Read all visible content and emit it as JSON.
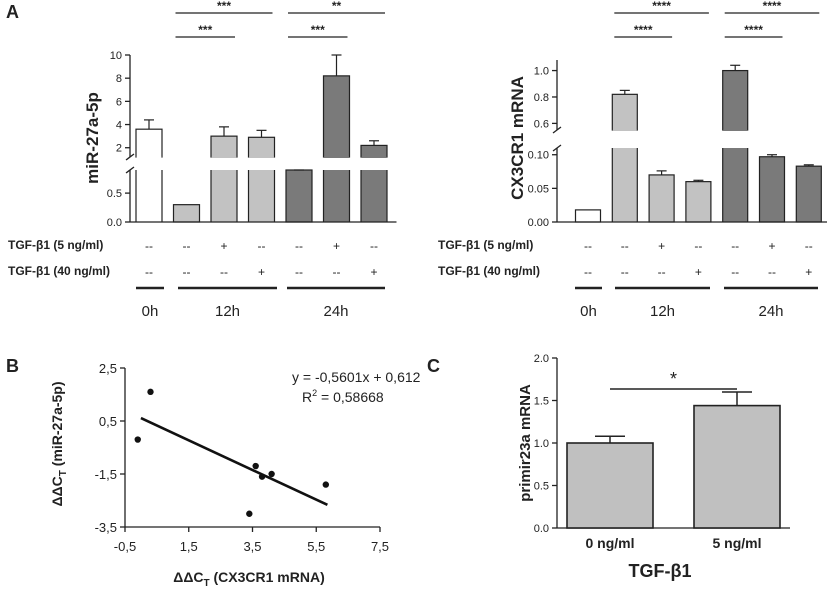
{
  "colors": {
    "white_bar": "#ffffff",
    "light_bar": "#c2c2c2",
    "dark_bar": "#7a7a7a",
    "stroke": "#222222",
    "c_bar": "#c0c0c0"
  },
  "panel_labels": {
    "a": "A",
    "b": "B",
    "c": "C"
  },
  "treatment_table": {
    "row1_label": "TGF-β1  (5 ng/ml)",
    "row2_label": "TGF-β1 (40 ng/ml)",
    "row1": [
      "--",
      "--",
      "+",
      "--",
      "--",
      "+",
      "--"
    ],
    "row2": [
      "--",
      "--",
      "--",
      "+",
      "--",
      "--",
      "+"
    ],
    "time_labels": [
      "0h",
      "12h",
      "24h"
    ]
  },
  "chart_data": [
    {
      "id": "A-left",
      "type": "bar",
      "ylabel": "miR-27a-5p",
      "categories": [
        "0h",
        "12h ctrl",
        "12h TGF-β1 5",
        "12h TGF-β1 40",
        "24h ctrl",
        "24h TGF-β1 5",
        "24h TGF-β1 40"
      ],
      "values": [
        3.6,
        0.3,
        3.0,
        2.9,
        0.9,
        8.2,
        2.2
      ],
      "errors": [
        0.8,
        0.0,
        0.8,
        0.6,
        0.2,
        1.8,
        0.4
      ],
      "bar_colors": [
        "white",
        "light",
        "light",
        "light",
        "dark",
        "dark",
        "dark"
      ],
      "y_broken_axis": true,
      "lower_ticks": [
        "0.0",
        "0.5"
      ],
      "upper_ticks": [
        "2",
        "4",
        "6",
        "8",
        "10"
      ],
      "significance": [
        {
          "from": 1,
          "to": 3,
          "label": "***"
        },
        {
          "from": 1,
          "to": 2,
          "label": "***"
        },
        {
          "from": 4,
          "to": 6,
          "label": "**"
        },
        {
          "from": 4,
          "to": 5,
          "label": "***"
        }
      ]
    },
    {
      "id": "A-right",
      "type": "bar",
      "ylabel": "CX3CR1 mRNA",
      "categories": [
        "0h",
        "12h ctrl",
        "12h TGF-β1 5",
        "12h TGF-β1 40",
        "24h ctrl",
        "24h TGF-β1 5",
        "24h TGF-β1 40"
      ],
      "values": [
        0.018,
        0.82,
        0.07,
        0.06,
        1.0,
        0.097,
        0.083
      ],
      "errors": [
        0.0,
        0.03,
        0.006,
        0.002,
        0.04,
        0.003,
        0.002
      ],
      "bar_colors": [
        "white",
        "light",
        "light",
        "light",
        "dark",
        "dark",
        "dark"
      ],
      "y_broken_axis": true,
      "lower_ticks": [
        "0.00",
        "0.05",
        "0.10"
      ],
      "upper_ticks": [
        "0.6",
        "0.8",
        "1.0"
      ],
      "significance": [
        {
          "from": 1,
          "to": 3,
          "label": "****"
        },
        {
          "from": 1,
          "to": 2,
          "label": "****"
        },
        {
          "from": 4,
          "to": 6,
          "label": "****"
        },
        {
          "from": 4,
          "to": 5,
          "label": "****"
        }
      ]
    },
    {
      "id": "B",
      "type": "scatter",
      "xlabel": "ΔΔC",
      "xlabel_sub": "T",
      "xlabel_rest": " (CX3CR1 mRNA)",
      "ylabel": "ΔΔC",
      "ylabel_sub": "T",
      "ylabel_rest": " (miR-27a-5p)",
      "xlim": [
        -0.5,
        7.5
      ],
      "ylim": [
        -3.5,
        2.5
      ],
      "x_ticks": [
        "-0,5",
        "1,5",
        "3,5",
        "5,5",
        "7,5"
      ],
      "y_ticks": [
        "2,5",
        "0,5",
        "-1,5",
        "-3,5"
      ],
      "points": [
        {
          "x": -0.1,
          "y": -0.2
        },
        {
          "x": 0.3,
          "y": 1.6
        },
        {
          "x": 3.4,
          "y": -3.0
        },
        {
          "x": 3.6,
          "y": -1.2
        },
        {
          "x": 3.8,
          "y": -1.6
        },
        {
          "x": 4.1,
          "y": -1.5
        },
        {
          "x": 5.8,
          "y": -1.9
        }
      ],
      "fit": {
        "slope": -0.5601,
        "intercept": 0.612,
        "x_from": 0.0,
        "x_to": 5.85
      },
      "equation": "y = -0,5601x + 0,612",
      "r2_label": "R",
      "r2_sup": "2",
      "r2_value": " = 0,58668"
    },
    {
      "id": "C",
      "type": "bar",
      "ylabel": "primir23a mRNA",
      "xlabel": "TGF-β1",
      "categories": [
        "0 ng/ml",
        "5 ng/ml"
      ],
      "values": [
        1.0,
        1.44
      ],
      "errors": [
        0.08,
        0.16
      ],
      "ylim": [
        0.0,
        2.0
      ],
      "y_ticks": [
        "0.0",
        "0.5",
        "1.0",
        "1.5",
        "2.0"
      ],
      "significance": [
        {
          "from": 0,
          "to": 1,
          "label": "*"
        }
      ]
    }
  ]
}
